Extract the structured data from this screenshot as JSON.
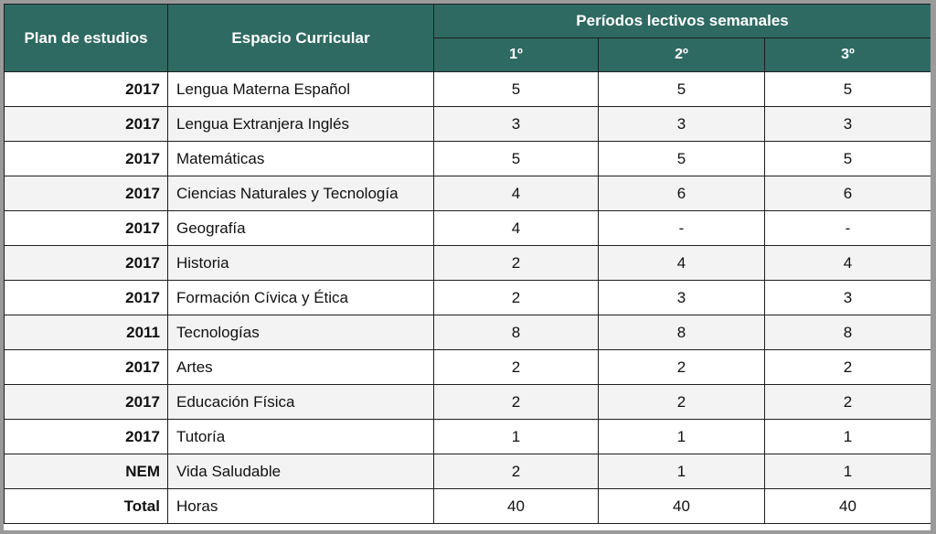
{
  "headers": {
    "plan": "Plan de estudios",
    "espacio": "Espacio Curricular",
    "periodos": "Períodos lectivos semanales",
    "grades": [
      "1º",
      "2º",
      "3º"
    ]
  },
  "rows": [
    {
      "plan": "2017",
      "espacio": "Lengua Materna Español",
      "p1": "5",
      "p2": "5",
      "p3": "5"
    },
    {
      "plan": "2017",
      "espacio": "Lengua Extranjera Inglés",
      "p1": "3",
      "p2": "3",
      "p3": "3"
    },
    {
      "plan": "2017",
      "espacio": "Matemáticas",
      "p1": "5",
      "p2": "5",
      "p3": "5"
    },
    {
      "plan": "2017",
      "espacio": "Ciencias Naturales y Tecnología",
      "p1": "4",
      "p2": "6",
      "p3": "6"
    },
    {
      "plan": "2017",
      "espacio": "Geografía",
      "p1": "4",
      "p2": "-",
      "p3": "-"
    },
    {
      "plan": "2017",
      "espacio": "Historia",
      "p1": "2",
      "p2": "4",
      "p3": "4"
    },
    {
      "plan": "2017",
      "espacio": "Formación Cívica y Ética",
      "p1": "2",
      "p2": "3",
      "p3": "3"
    },
    {
      "plan": "2011",
      "espacio": "Tecnologías",
      "p1": "8",
      "p2": "8",
      "p3": "8"
    },
    {
      "plan": "2017",
      "espacio": "Artes",
      "p1": "2",
      "p2": "2",
      "p3": "2"
    },
    {
      "plan": "2017",
      "espacio": "Educación Física",
      "p1": "2",
      "p2": "2",
      "p3": "2"
    },
    {
      "plan": "2017",
      "espacio": "Tutoría",
      "p1": "1",
      "p2": "1",
      "p3": "1"
    },
    {
      "plan": "NEM",
      "espacio": "Vida Saludable",
      "p1": "2",
      "p2": "1",
      "p3": "1"
    },
    {
      "plan": "Total",
      "espacio": "Horas",
      "p1": "40",
      "p2": "40",
      "p3": "40"
    }
  ]
}
